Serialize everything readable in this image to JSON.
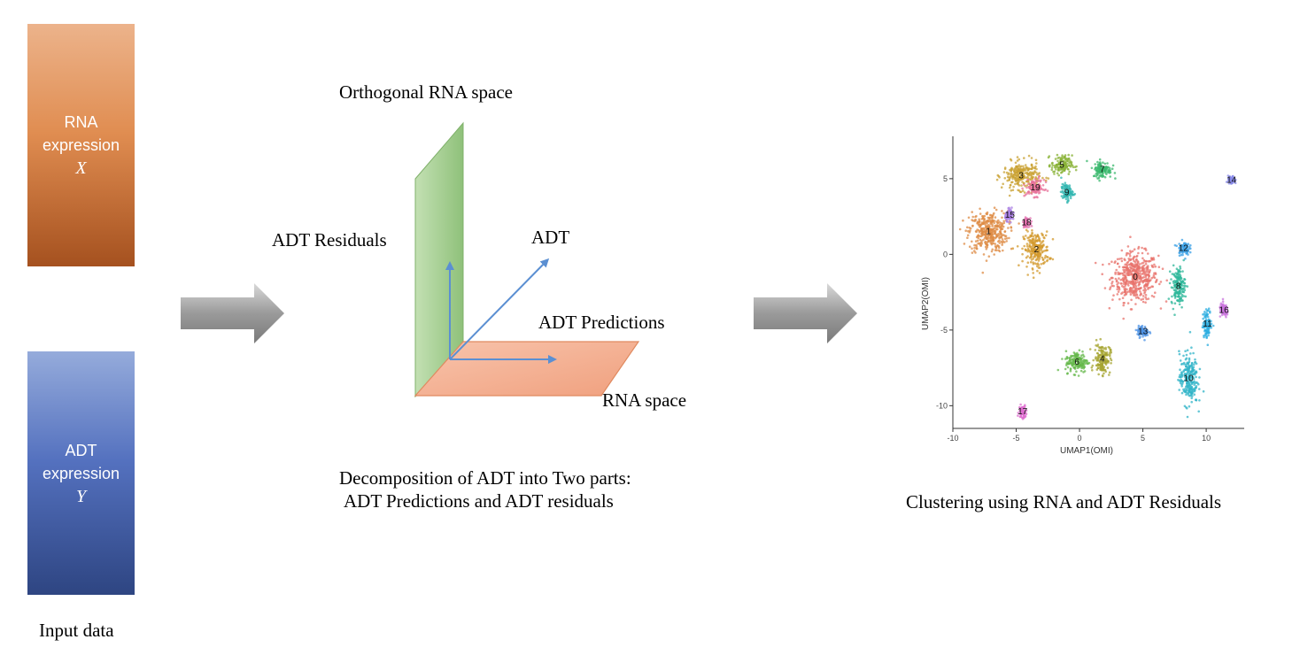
{
  "input": {
    "rna_box": {
      "line1": "RNA",
      "line2": "expression",
      "symbol": "X"
    },
    "adt_box": {
      "line1": "ADT",
      "line2": "expression",
      "symbol": "Y"
    },
    "caption": "Input data"
  },
  "decomposition": {
    "orthogonal_label": "Orthogonal RNA space",
    "residuals_label": "ADT Residuals",
    "adt_label": "ADT",
    "predictions_label": "ADT Predictions",
    "rna_space_label": "RNA space",
    "caption_line1": "Decomposition of ADT into Two parts:",
    "caption_line2": "ADT Predictions and ADT residuals"
  },
  "clustering": {
    "caption": "Clustering using RNA and ADT Residuals",
    "xlabel": "UMAP1(OMI)",
    "ylabel": "UMAP2(OMI)",
    "x_ticks": [
      "-10",
      "-5",
      "0",
      "5",
      "10"
    ],
    "y_ticks": [
      "5",
      "0",
      "-5",
      "-10"
    ]
  },
  "chart_data": {
    "type": "scatter",
    "xlabel": "UMAP1(OMI)",
    "ylabel": "UMAP2(OMI)",
    "xlim": [
      -10,
      13
    ],
    "ylim": [
      -11.5,
      7.8
    ],
    "clusters": [
      {
        "label": "0",
        "x": 4.4,
        "y": -1.5,
        "color": "#e8736c"
      },
      {
        "label": "1",
        "x": -7.2,
        "y": 1.5,
        "color": "#de8b44"
      },
      {
        "label": "2",
        "x": -3.4,
        "y": 0.3,
        "color": "#d39a2e"
      },
      {
        "label": "3",
        "x": -4.6,
        "y": 5.2,
        "color": "#c9a233"
      },
      {
        "label": "4",
        "x": 1.8,
        "y": -6.9,
        "color": "#a6a430"
      },
      {
        "label": "5",
        "x": -1.4,
        "y": 5.9,
        "color": "#88b135"
      },
      {
        "label": "6",
        "x": -0.2,
        "y": -7.1,
        "color": "#66b84b"
      },
      {
        "label": "7",
        "x": 1.8,
        "y": 5.6,
        "color": "#3bb86e"
      },
      {
        "label": "8",
        "x": 7.8,
        "y": -2.1,
        "color": "#2db79a"
      },
      {
        "label": "9",
        "x": -1.0,
        "y": 4.1,
        "color": "#30b5b0"
      },
      {
        "label": "10",
        "x": 8.6,
        "y": -8.2,
        "color": "#32b4c8"
      },
      {
        "label": "11",
        "x": 10.1,
        "y": -4.6,
        "color": "#2eaee0"
      },
      {
        "label": "12",
        "x": 8.2,
        "y": 0.4,
        "color": "#3ea2e6"
      },
      {
        "label": "13",
        "x": 5.0,
        "y": -5.1,
        "color": "#4d93e6"
      },
      {
        "label": "14",
        "x": 12.0,
        "y": 4.9,
        "color": "#8a8be9"
      },
      {
        "label": "15",
        "x": -5.5,
        "y": 2.6,
        "color": "#aa7fe3"
      },
      {
        "label": "16",
        "x": 11.4,
        "y": -3.7,
        "color": "#c974de"
      },
      {
        "label": "17",
        "x": -4.5,
        "y": -10.4,
        "color": "#dd6dcf"
      },
      {
        "label": "18",
        "x": -4.2,
        "y": 2.1,
        "color": "#e06fae"
      },
      {
        "label": "19",
        "x": -3.5,
        "y": 4.4,
        "color": "#e7719a"
      }
    ]
  },
  "colors": {
    "arrow_gray": "#9a9a9a",
    "green_plane": "#a9cf94",
    "orange_plane": "#f2a98a",
    "vector_blue": "#5b8fd2"
  }
}
